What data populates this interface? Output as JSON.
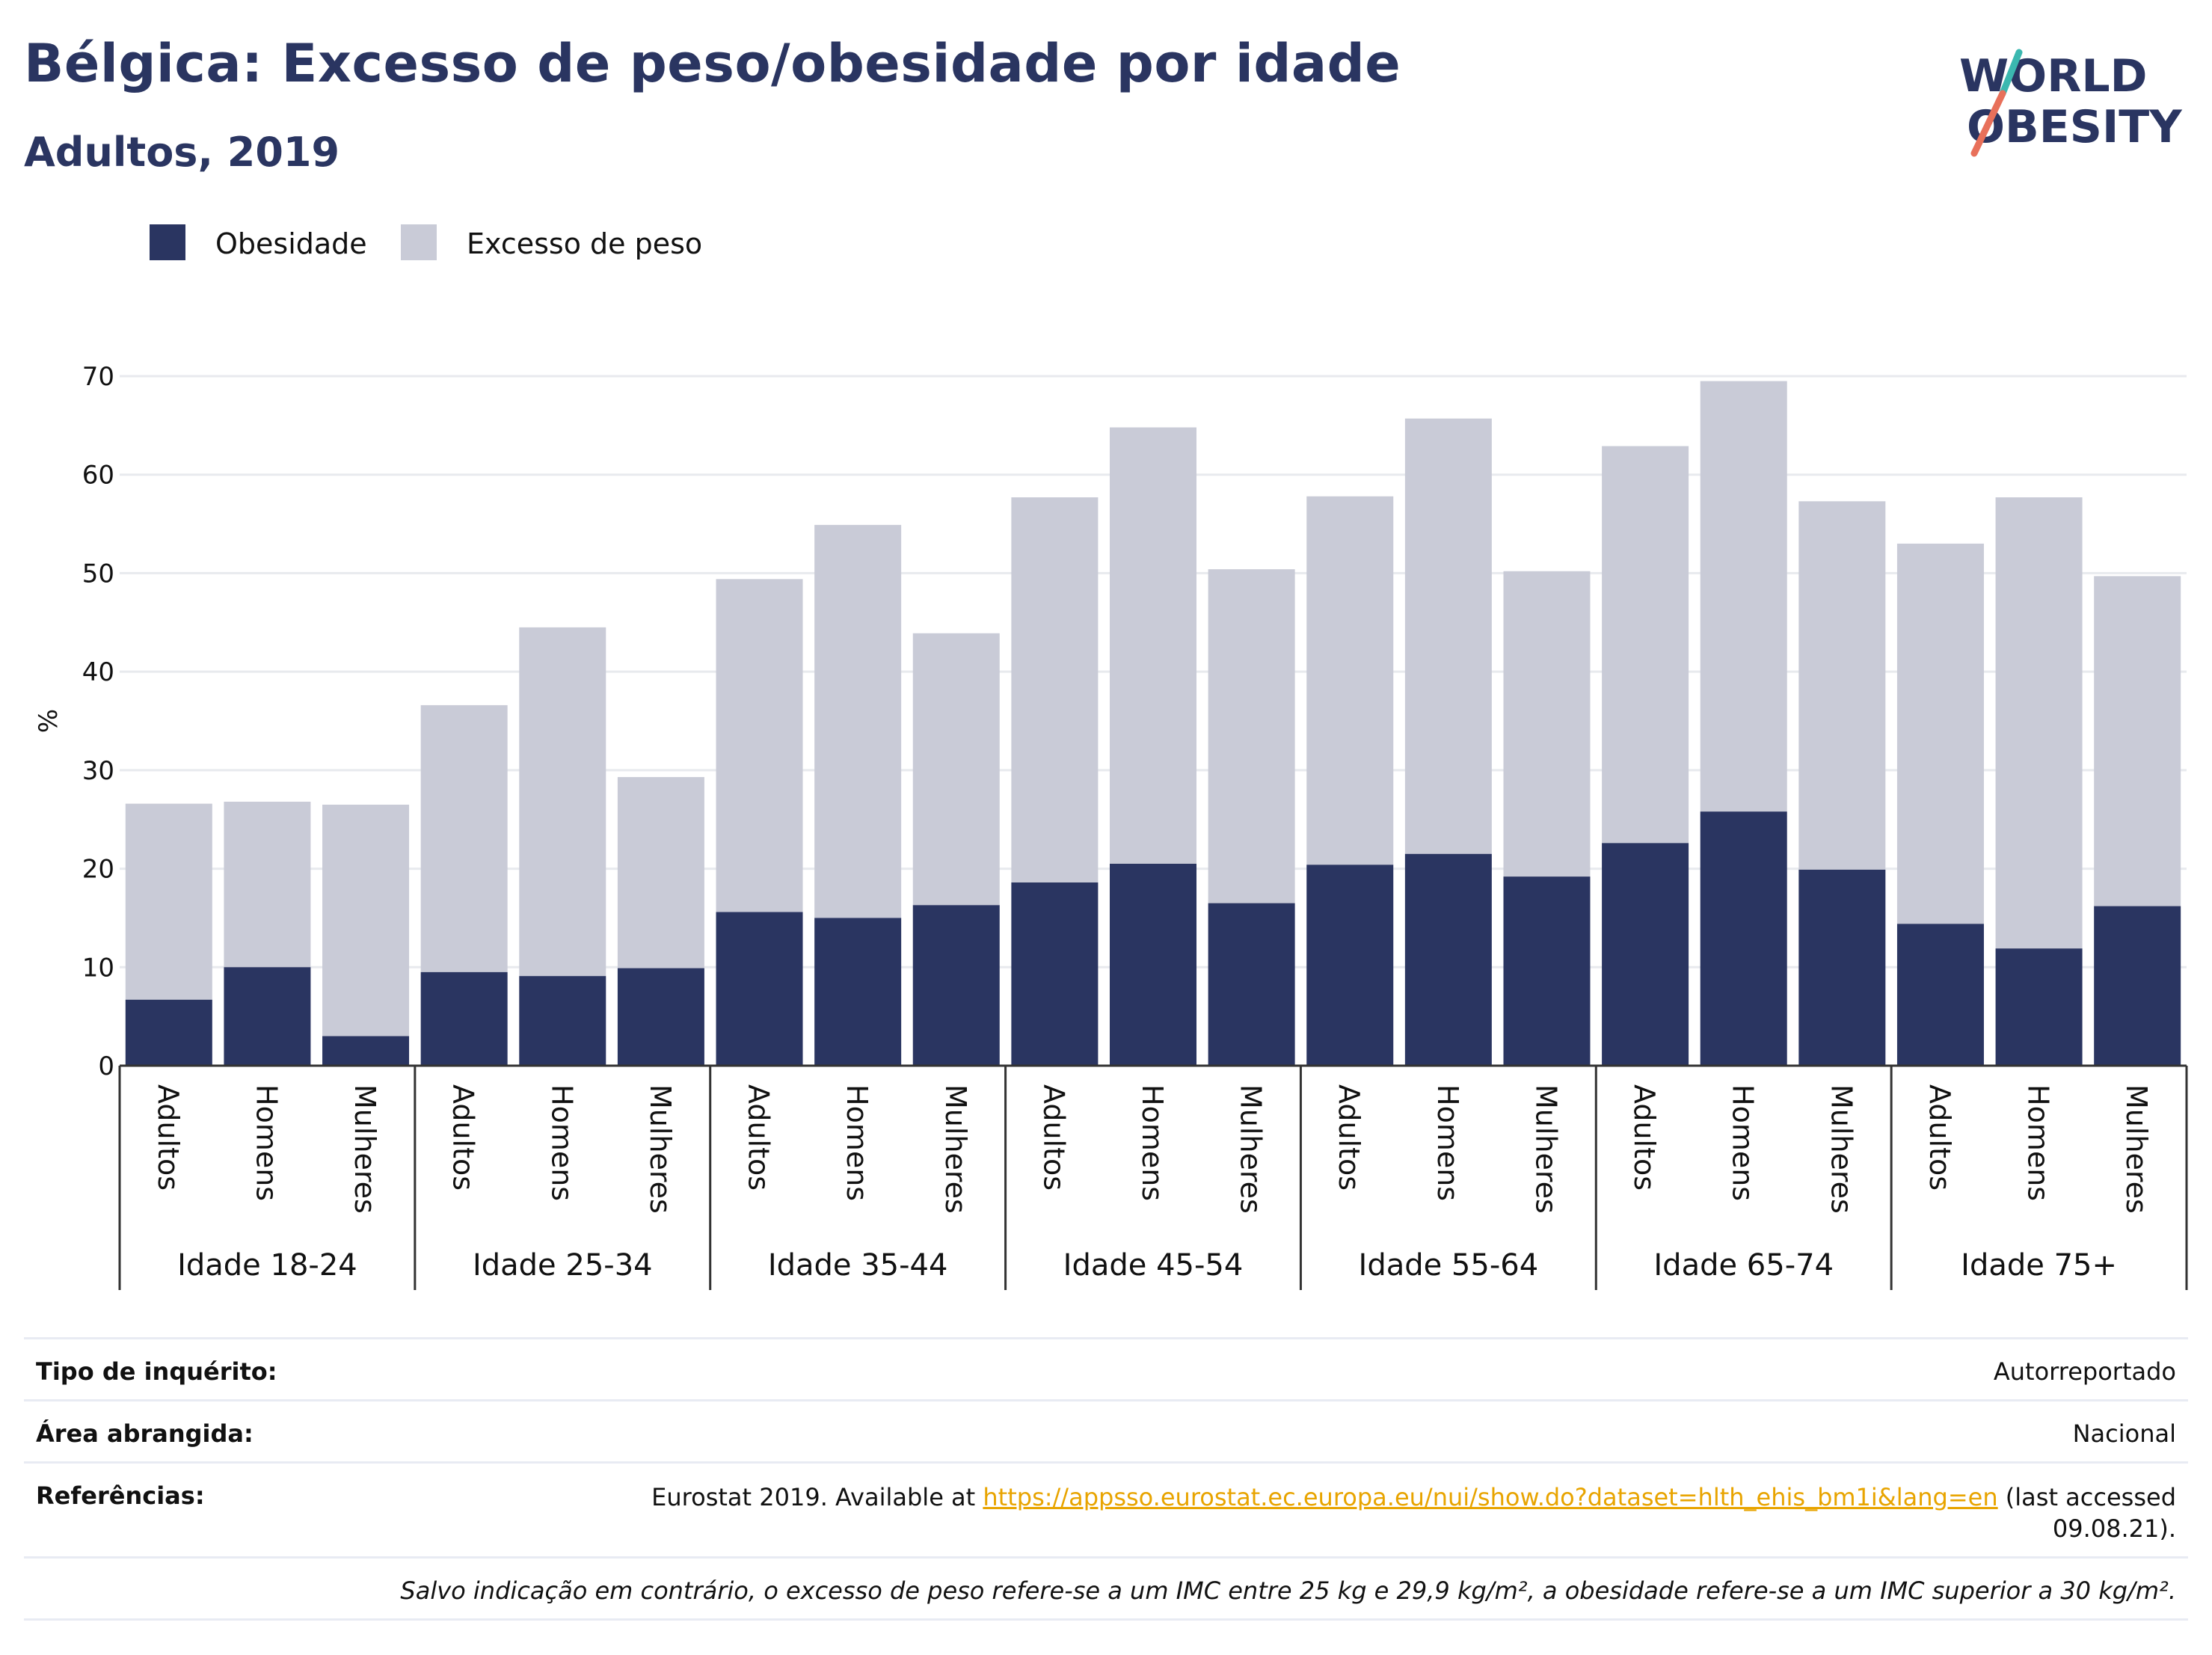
{
  "title": "Bélgica: Excesso de peso/obesidade por idade",
  "subtitle": "Adultos, 2019",
  "logo": {
    "line1": "WORLD",
    "line2": "OBESITY",
    "accent_teal": "#3bb8b0",
    "accent_coral": "#e8705a"
  },
  "colors": {
    "obesity": "#2a3561",
    "overweight": "#c9cbd7",
    "text": "#2a3561"
  },
  "chart_data": {
    "type": "bar",
    "stacked": true,
    "title": "Bélgica: Excesso de peso/obesidade por idade",
    "subtitle": "Adultos, 2019",
    "ylabel": "%",
    "ylim": [
      0,
      70
    ],
    "yticks": [
      0,
      10,
      20,
      30,
      40,
      50,
      60,
      70
    ],
    "grid": true,
    "legend": [
      {
        "name": "Obesidade",
        "color": "#2a3561"
      },
      {
        "name": "Excesso de peso",
        "color": "#c9cbd7"
      }
    ],
    "groups": [
      {
        "label": "Idade 18-24",
        "bars": [
          {
            "category": "Adultos",
            "obesity": 6.7,
            "total": 26.6
          },
          {
            "category": "Homens",
            "obesity": 10.0,
            "total": 26.8
          },
          {
            "category": "Mulheres",
            "obesity": 3.0,
            "total": 26.5
          }
        ]
      },
      {
        "label": "Idade 25-34",
        "bars": [
          {
            "category": "Adultos",
            "obesity": 9.5,
            "total": 36.6
          },
          {
            "category": "Homens",
            "obesity": 9.1,
            "total": 44.5
          },
          {
            "category": "Mulheres",
            "obesity": 9.9,
            "total": 29.3
          }
        ]
      },
      {
        "label": "Idade 35-44",
        "bars": [
          {
            "category": "Adultos",
            "obesity": 15.6,
            "total": 49.4
          },
          {
            "category": "Homens",
            "obesity": 15.0,
            "total": 54.9
          },
          {
            "category": "Mulheres",
            "obesity": 16.3,
            "total": 43.9
          }
        ]
      },
      {
        "label": "Idade 45-54",
        "bars": [
          {
            "category": "Adultos",
            "obesity": 18.6,
            "total": 57.7
          },
          {
            "category": "Homens",
            "obesity": 20.5,
            "total": 64.8
          },
          {
            "category": "Mulheres",
            "obesity": 16.5,
            "total": 50.4
          }
        ]
      },
      {
        "label": "Idade 55-64",
        "bars": [
          {
            "category": "Adultos",
            "obesity": 20.4,
            "total": 57.8
          },
          {
            "category": "Homens",
            "obesity": 21.5,
            "total": 65.7
          },
          {
            "category": "Mulheres",
            "obesity": 19.2,
            "total": 50.2
          }
        ]
      },
      {
        "label": "Idade 65-74",
        "bars": [
          {
            "category": "Adultos",
            "obesity": 22.6,
            "total": 62.9
          },
          {
            "category": "Homens",
            "obesity": 25.8,
            "total": 69.5
          },
          {
            "category": "Mulheres",
            "obesity": 19.9,
            "total": 57.3
          }
        ]
      },
      {
        "label": "Idade 75+",
        "bars": [
          {
            "category": "Adultos",
            "obesity": 14.4,
            "total": 53.0
          },
          {
            "category": "Homens",
            "obesity": 11.9,
            "total": 57.7
          },
          {
            "category": "Mulheres",
            "obesity": 16.2,
            "total": 49.7
          }
        ]
      }
    ]
  },
  "info": {
    "survey_label": "Tipo de inquérito:",
    "survey_value": "Autorreportado",
    "area_label": "Área abrangida:",
    "area_value": "Nacional",
    "refs_label": "Referências:",
    "refs_prefix": "Eurostat 2019. Available at ",
    "refs_link": "https://appsso.eurostat.ec.europa.eu/nui/show.do?dataset=hlth_ehis_bm1i&lang=en",
    "refs_suffix": " (last accessed",
    "refs_date": "09.08.21).",
    "note": "Salvo indicação em contrário, o excesso de peso refere-se a um IMC entre 25 kg e 29,9 kg/m², a obesidade refere-se a um IMC superior a 30 kg/m²."
  }
}
